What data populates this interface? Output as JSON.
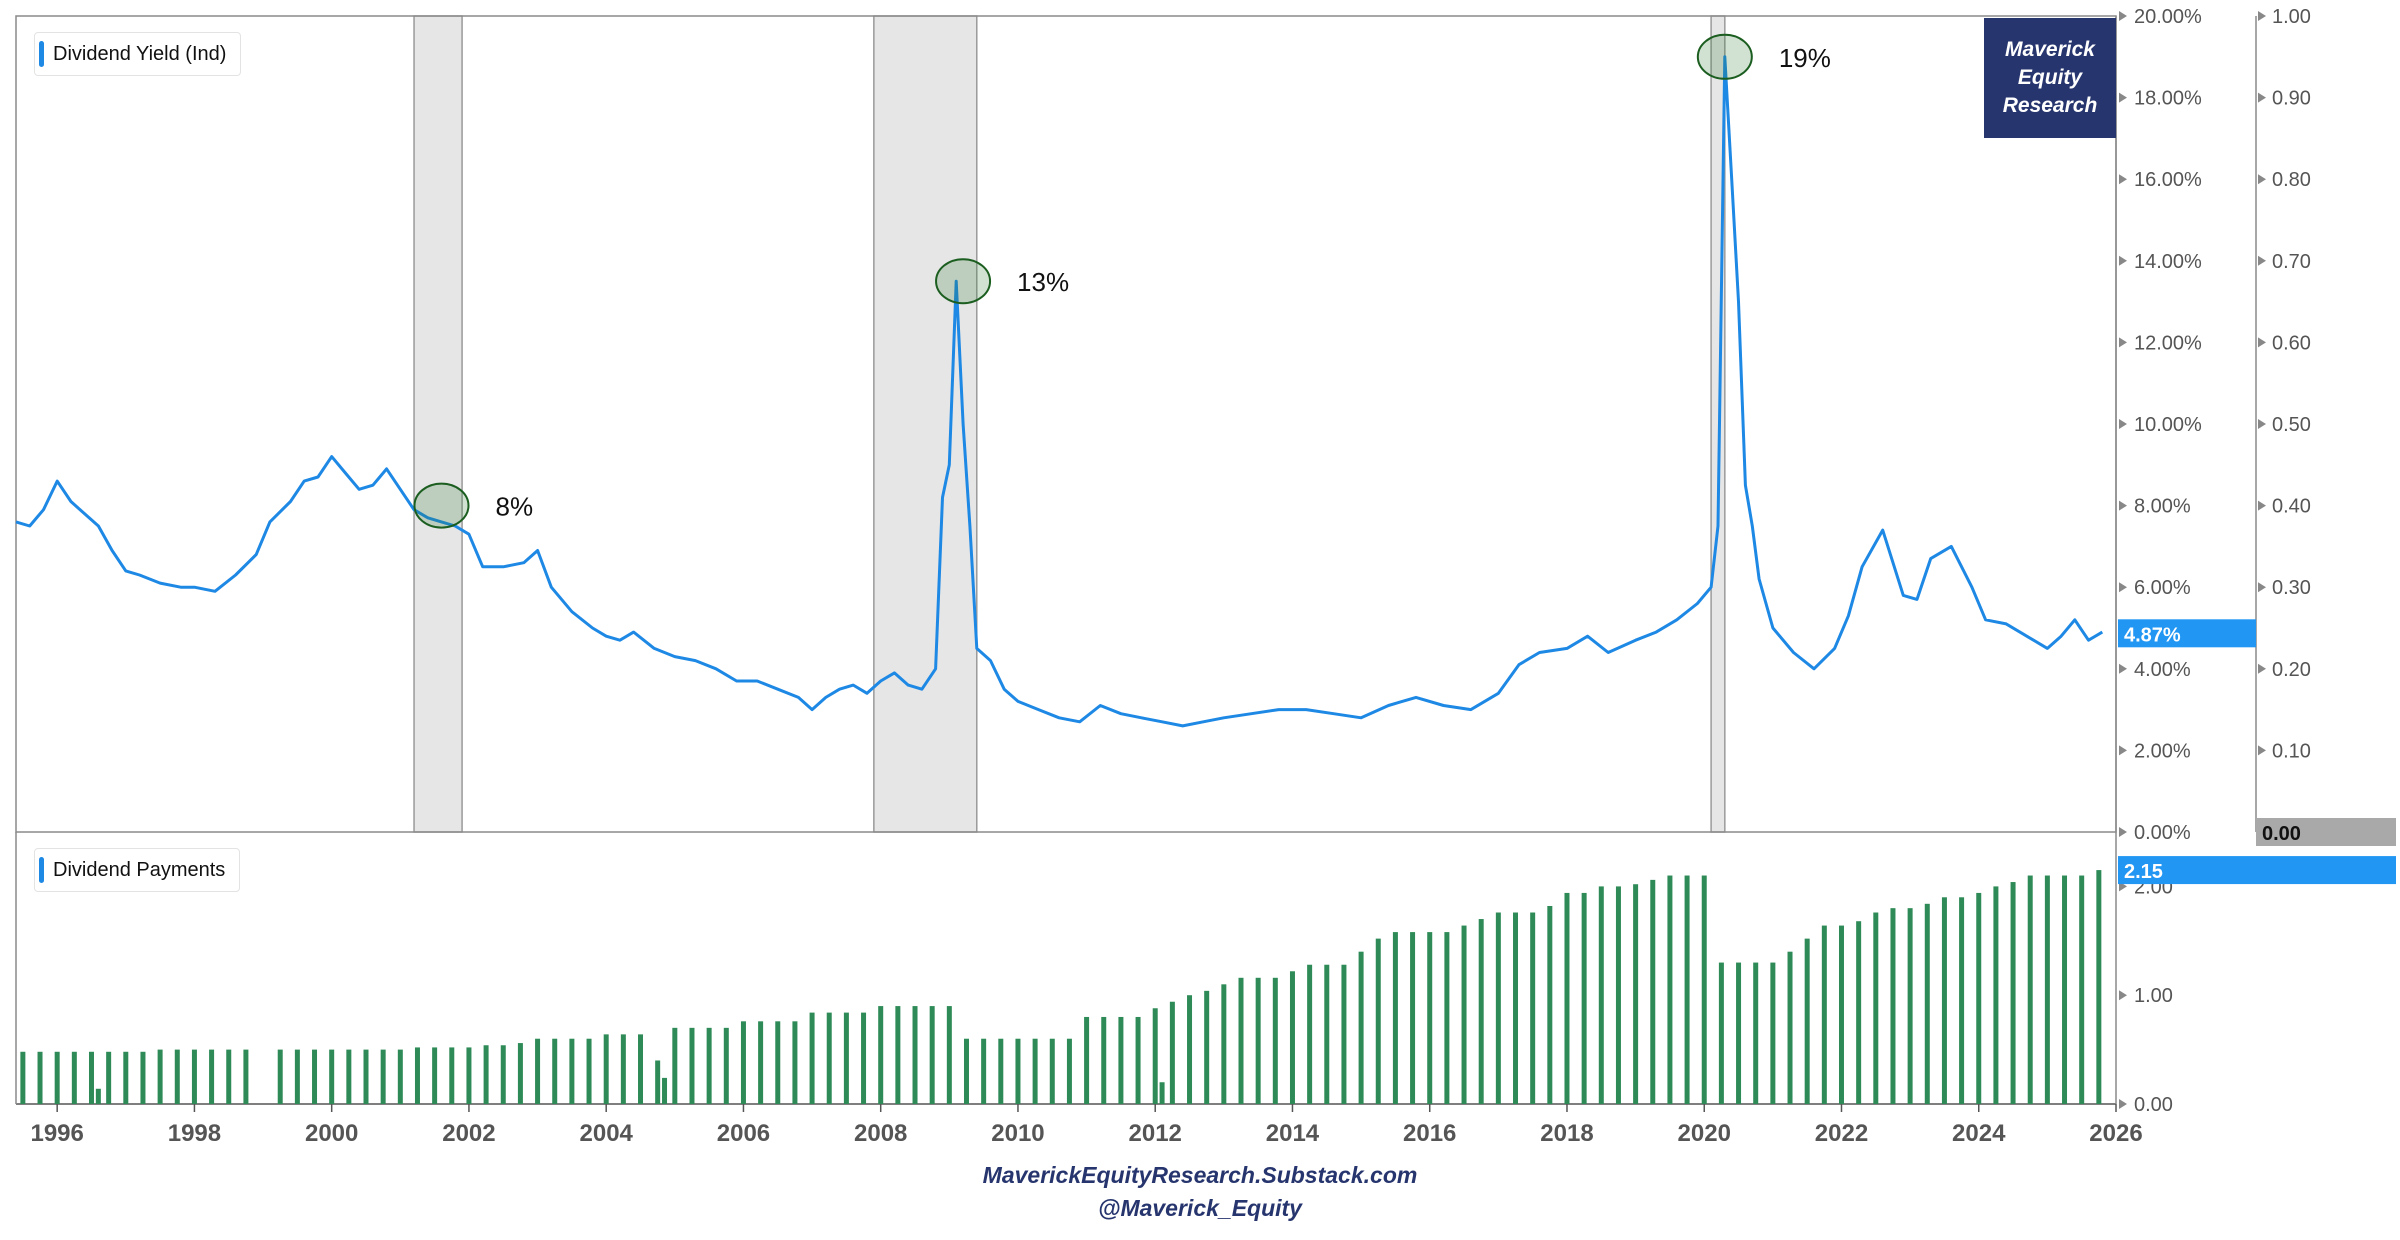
{
  "chart_data": [
    {
      "type": "line",
      "series": [
        {
          "name": "Dividend Yield (Ind)",
          "x": [
            1995.4,
            1995.6,
            1995.8,
            1996.0,
            1996.2,
            1996.4,
            1996.6,
            1996.8,
            1997.0,
            1997.2,
            1997.5,
            1997.8,
            1998.0,
            1998.3,
            1998.6,
            1998.9,
            1999.1,
            1999.4,
            1999.6,
            1999.8,
            2000.0,
            2000.2,
            2000.4,
            2000.6,
            2000.8,
            2001.0,
            2001.2,
            2001.4,
            2001.6,
            2001.8,
            2002.0,
            2002.2,
            2002.5,
            2002.8,
            2003.0,
            2003.2,
            2003.5,
            2003.8,
            2004.0,
            2004.2,
            2004.4,
            2004.7,
            2005.0,
            2005.3,
            2005.6,
            2005.9,
            2006.2,
            2006.5,
            2006.8,
            2007.0,
            2007.2,
            2007.4,
            2007.6,
            2007.8,
            2008.0,
            2008.2,
            2008.4,
            2008.6,
            2008.8,
            2008.9,
            2009.0,
            2009.1,
            2009.2,
            2009.3,
            2009.4,
            2009.6,
            2009.8,
            2010.0,
            2010.3,
            2010.6,
            2010.9,
            2011.2,
            2011.5,
            2011.8,
            2012.1,
            2012.4,
            2012.7,
            2013.0,
            2013.4,
            2013.8,
            2014.2,
            2014.6,
            2015.0,
            2015.4,
            2015.8,
            2016.2,
            2016.6,
            2017.0,
            2017.3,
            2017.6,
            2018.0,
            2018.3,
            2018.6,
            2019.0,
            2019.3,
            2019.6,
            2019.9,
            2020.1,
            2020.2,
            2020.3,
            2020.4,
            2020.5,
            2020.6,
            2020.7,
            2020.8,
            2021.0,
            2021.3,
            2021.6,
            2021.9,
            2022.1,
            2022.3,
            2022.6,
            2022.9,
            2023.1,
            2023.3,
            2023.6,
            2023.9,
            2024.1,
            2024.4,
            2024.7,
            2025.0,
            2025.2,
            2025.4,
            2025.6,
            2025.8
          ],
          "values": [
            7.6,
            7.5,
            7.9,
            8.6,
            8.1,
            7.8,
            7.5,
            6.9,
            6.4,
            6.3,
            6.1,
            6.0,
            6.0,
            5.9,
            6.3,
            6.8,
            7.6,
            8.1,
            8.6,
            8.7,
            9.2,
            8.8,
            8.4,
            8.5,
            8.9,
            8.4,
            7.9,
            7.7,
            7.6,
            7.5,
            7.3,
            6.5,
            6.5,
            6.6,
            6.9,
            6.0,
            5.4,
            5.0,
            4.8,
            4.7,
            4.9,
            4.5,
            4.3,
            4.2,
            4.0,
            3.7,
            3.7,
            3.5,
            3.3,
            3.0,
            3.3,
            3.5,
            3.6,
            3.4,
            3.7,
            3.9,
            3.6,
            3.5,
            4.0,
            8.2,
            9.0,
            13.5,
            10.0,
            7.5,
            4.5,
            4.2,
            3.5,
            3.2,
            3.0,
            2.8,
            2.7,
            3.1,
            2.9,
            2.8,
            2.7,
            2.6,
            2.7,
            2.8,
            2.9,
            3.0,
            3.0,
            2.9,
            2.8,
            3.1,
            3.3,
            3.1,
            3.0,
            3.4,
            4.1,
            4.4,
            4.5,
            4.8,
            4.4,
            4.7,
            4.9,
            5.2,
            5.6,
            6.0,
            7.5,
            19.0,
            16.0,
            13.0,
            8.5,
            7.5,
            6.2,
            5.0,
            4.4,
            4.0,
            4.5,
            5.3,
            6.5,
            7.4,
            5.8,
            5.7,
            6.7,
            7.0,
            6.0,
            5.2,
            5.1,
            4.8,
            4.5,
            4.8,
            5.2,
            4.7,
            4.9
          ],
          "color": "#1e88e5"
        }
      ],
      "ylim": [
        0,
        20
      ],
      "y_ticks": [
        "0.00%",
        "2.00%",
        "4.00%",
        "6.00%",
        "8.00%",
        "10.00%",
        "12.00%",
        "14.00%",
        "16.00%",
        "18.00%",
        "20.00%"
      ],
      "secondary_ylim": [
        0,
        1
      ],
      "secondary_y_ticks": [
        "0.10",
        "0.20",
        "0.30",
        "0.40",
        "0.50",
        "0.60",
        "0.70",
        "0.80",
        "0.90",
        "1.00"
      ],
      "secondary_last_value": "0.00",
      "last_value": "4.87%",
      "shaded_periods": [
        [
          2001.2,
          2001.9
        ],
        [
          2007.9,
          2009.4
        ],
        [
          2020.1,
          2020.3
        ]
      ],
      "annotations": [
        {
          "label": "8%",
          "x": 2001.6,
          "y": 8.0
        },
        {
          "label": "13%",
          "x": 2009.2,
          "y": 13.5
        },
        {
          "label": "19%",
          "x": 2020.3,
          "y": 19.0
        }
      ],
      "legend_position": "top-left"
    },
    {
      "type": "bar",
      "series": [
        {
          "name": "Dividend Payments",
          "color": "#2e8b57",
          "x": [
            1995.5,
            1995.75,
            1996.0,
            1996.25,
            1996.5,
            1996.6,
            1996.75,
            1997.0,
            1997.25,
            1997.5,
            1997.75,
            1998.0,
            1998.25,
            1998.5,
            1998.75,
            1999.25,
            1999.5,
            1999.75,
            2000.0,
            2000.25,
            2000.5,
            2000.75,
            2001.0,
            2001.25,
            2001.5,
            2001.75,
            2002.0,
            2002.25,
            2002.5,
            2002.75,
            2003.0,
            2003.25,
            2003.5,
            2003.75,
            2004.0,
            2004.25,
            2004.5,
            2004.75,
            2004.85,
            2004.95,
            2005.0,
            2005.25,
            2005.5,
            2005.75,
            2006.0,
            2006.25,
            2006.5,
            2006.75,
            2007.0,
            2007.25,
            2007.5,
            2007.75,
            2008.0,
            2008.25,
            2008.5,
            2008.75,
            2009.0,
            2009.25,
            2009.5,
            2009.75,
            2010.0,
            2010.25,
            2010.5,
            2010.75,
            2011.0,
            2011.25,
            2011.5,
            2011.75,
            2012.0,
            2012.1,
            2012.25,
            2012.5,
            2012.75,
            2013.0,
            2013.25,
            2013.5,
            2013.75,
            2014.0,
            2014.25,
            2014.5,
            2014.75,
            2015.0,
            2015.25,
            2015.5,
            2015.75,
            2016.0,
            2016.25,
            2016.5,
            2016.75,
            2017.0,
            2017.25,
            2017.5,
            2017.75,
            2018.0,
            2018.25,
            2018.5,
            2018.75,
            2019.0,
            2019.25,
            2019.5,
            2019.75,
            2020.0,
            2020.25,
            2020.5,
            2020.75,
            2021.0,
            2021.25,
            2021.5,
            2021.75,
            2022.0,
            2022.25,
            2022.5,
            2022.75,
            2023.0,
            2023.25,
            2023.5,
            2023.75,
            2024.0,
            2024.25,
            2024.5,
            2024.75,
            2025.0,
            2025.25,
            2025.5,
            2025.75
          ],
          "values": [
            0.48,
            0.48,
            0.48,
            0.48,
            0.48,
            0.14,
            0.48,
            0.48,
            0.48,
            0.5,
            0.5,
            0.5,
            0.5,
            0.5,
            0.5,
            0.5,
            0.5,
            0.5,
            0.5,
            0.5,
            0.5,
            0.5,
            0.5,
            0.52,
            0.52,
            0.52,
            0.52,
            0.54,
            0.54,
            0.56,
            0.6,
            0.6,
            0.6,
            0.6,
            0.64,
            0.64,
            0.64,
            0.4,
            0.24,
            0.0,
            0.7,
            0.7,
            0.7,
            0.7,
            0.76,
            0.76,
            0.76,
            0.76,
            0.84,
            0.84,
            0.84,
            0.84,
            0.9,
            0.9,
            0.9,
            0.9,
            0.9,
            0.6,
            0.6,
            0.6,
            0.6,
            0.6,
            0.6,
            0.6,
            0.8,
            0.8,
            0.8,
            0.8,
            0.88,
            0.2,
            0.94,
            1.0,
            1.04,
            1.1,
            1.16,
            1.16,
            1.16,
            1.22,
            1.28,
            1.28,
            1.28,
            1.4,
            1.52,
            1.58,
            1.58,
            1.58,
            1.58,
            1.64,
            1.7,
            1.76,
            1.76,
            1.76,
            1.82,
            1.94,
            1.94,
            2.0,
            2.0,
            2.02,
            2.06,
            2.1,
            2.1,
            2.1,
            1.3,
            1.3,
            1.3,
            1.3,
            1.4,
            1.52,
            1.64,
            1.64,
            1.68,
            1.76,
            1.8,
            1.8,
            1.84,
            1.9,
            1.9,
            1.94,
            2.0,
            2.04,
            2.1,
            2.1,
            2.1,
            2.1,
            2.15
          ]
        }
      ],
      "ylim": [
        0,
        2.5
      ],
      "y_ticks": [
        "0.00",
        "1.00",
        "2.00"
      ],
      "last_value": "2.15",
      "legend_position": "top-left"
    }
  ],
  "x_axis": {
    "min": 1995.4,
    "max": 2026.0,
    "ticks": [
      "1996",
      "1998",
      "2000",
      "2002",
      "2004",
      "2006",
      "2008",
      "2010",
      "2012",
      "2014",
      "2016",
      "2018",
      "2020",
      "2022",
      "2024",
      "2026"
    ]
  },
  "branding": {
    "line1": "Maverick",
    "line2": "Equity",
    "line3": "Research",
    "box_color": "#27356e"
  },
  "footer": {
    "site": "MaverickEquityResearch.Substack.com",
    "handle": "@Maverick_Equity"
  }
}
